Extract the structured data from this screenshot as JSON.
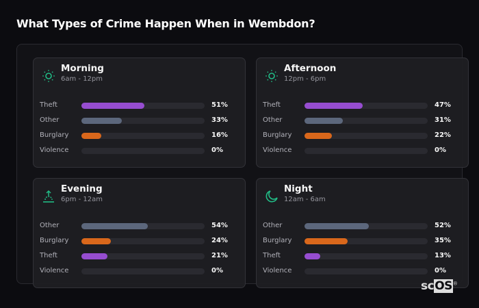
{
  "title": "What Types of Crime Happen When in Wembdon?",
  "colors": {
    "Theft": "#9b4fd6",
    "Other": "#5f6a80",
    "Burglary": "#e06a1c",
    "Violence": "#5f6a80",
    "icon": "#22c28a"
  },
  "chart_data": [
    {
      "type": "bar",
      "title": "Morning",
      "subtitle": "6am - 12pm",
      "icon": "sun-icon",
      "categories": [
        "Theft",
        "Other",
        "Burglary",
        "Violence"
      ],
      "values": [
        51,
        33,
        16,
        0
      ],
      "labels": [
        "51%",
        "33%",
        "16%",
        "0%"
      ],
      "ylim": [
        0,
        100
      ]
    },
    {
      "type": "bar",
      "title": "Afternoon",
      "subtitle": "12pm - 6pm",
      "icon": "sun-icon",
      "categories": [
        "Theft",
        "Other",
        "Burglary",
        "Violence"
      ],
      "values": [
        47,
        31,
        22,
        0
      ],
      "labels": [
        "47%",
        "31%",
        "22%",
        "0%"
      ],
      "ylim": [
        0,
        100
      ]
    },
    {
      "type": "bar",
      "title": "Evening",
      "subtitle": "6pm - 12am",
      "icon": "sunset-icon",
      "categories": [
        "Other",
        "Burglary",
        "Theft",
        "Violence"
      ],
      "values": [
        54,
        24,
        21,
        0
      ],
      "labels": [
        "54%",
        "24%",
        "21%",
        "0%"
      ],
      "ylim": [
        0,
        100
      ]
    },
    {
      "type": "bar",
      "title": "Night",
      "subtitle": "12am - 6am",
      "icon": "moon-icon",
      "categories": [
        "Other",
        "Burglary",
        "Theft",
        "Violence"
      ],
      "values": [
        52,
        35,
        13,
        0
      ],
      "labels": [
        "52%",
        "35%",
        "13%",
        "0%"
      ],
      "ylim": [
        0,
        100
      ]
    }
  ],
  "logo": {
    "text_a": "sc",
    "text_b": "OS",
    "mark": "®"
  }
}
